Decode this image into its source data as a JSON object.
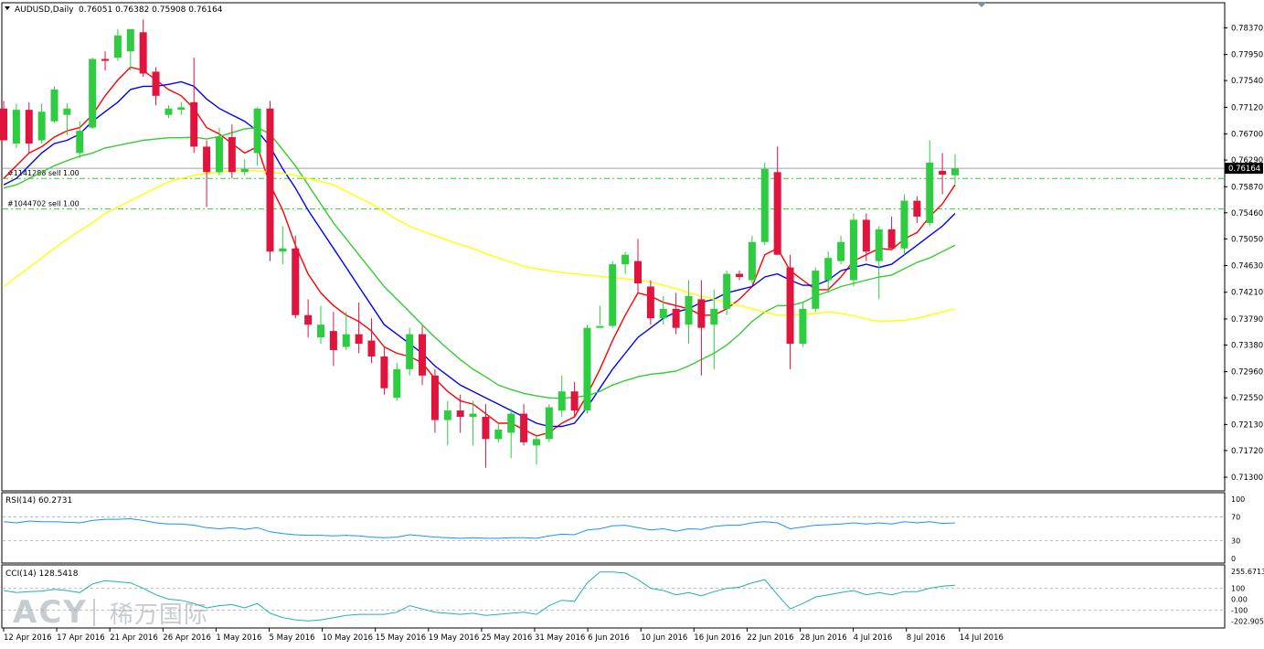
{
  "header": {
    "symbol": "AUDUSD,Daily",
    "ohlc": "0.76051 0.76382 0.75908 0.76164"
  },
  "current_price_label": "0.76164",
  "orders": [
    {
      "label": "#1141288 sell 1.00",
      "price": 0.76
    },
    {
      "label": "#1044702 sell 1.00",
      "price": 0.7552
    }
  ],
  "rsi": {
    "title": "RSI(14) 60.2731",
    "levels": [
      "100",
      "70",
      "30",
      "0"
    ]
  },
  "cci": {
    "title": "CCI(14) 128.5418",
    "levels": [
      "255.6713",
      "100",
      "0.00",
      "-100",
      "-202.905"
    ]
  },
  "watermark": {
    "latin": "ACY",
    "cn": "稀万国际"
  },
  "colors": {
    "bull": "#2ecc40",
    "bear": "#e0143c",
    "ma_red": "#ff0000",
    "ma_blue": "#0000ff",
    "ma_green": "#33cc33",
    "ma_yellow": "#ffff00",
    "osc": "#1e90ff",
    "cci": "#20b2aa"
  },
  "chart_data": [
    {
      "type": "candlestick",
      "title": "AUDUSD,Daily",
      "y_ticks": [
        "0.78370",
        "0.77950",
        "0.77540",
        "0.77120",
        "0.76700",
        "0.76290",
        "0.75870",
        "0.75460",
        "0.75050",
        "0.74630",
        "0.74210",
        "0.73790",
        "0.73380",
        "0.72960",
        "0.72550",
        "0.72130",
        "0.71720",
        "0.71300"
      ],
      "x_labels": [
        "12 Apr 2016",
        "17 Apr 2016",
        "21 Apr 2016",
        "26 Apr 2016",
        "1 May 2016",
        "5 May 2016",
        "10 May 2016",
        "15 May 2016",
        "19 May 2016",
        "25 May 2016",
        "31 May 2016",
        "6 Jun 2016",
        "10 Jun 2016",
        "16 Jun 2016",
        "22 Jun 2016",
        "28 Jun 2016",
        "4 Jul 2016",
        "8 Jul 2016",
        "14 Jul 2016"
      ],
      "ylim": [
        0.711,
        0.7875
      ],
      "candles": [
        {
          "o": 0.771,
          "h": 0.7722,
          "l": 0.766,
          "c": 0.766
        },
        {
          "o": 0.7655,
          "h": 0.7718,
          "l": 0.7648,
          "c": 0.7708
        },
        {
          "o": 0.7708,
          "h": 0.772,
          "l": 0.764,
          "c": 0.7655
        },
        {
          "o": 0.766,
          "h": 0.7718,
          "l": 0.7655,
          "c": 0.7705
        },
        {
          "o": 0.769,
          "h": 0.7745,
          "l": 0.7688,
          "c": 0.774
        },
        {
          "o": 0.77,
          "h": 0.7718,
          "l": 0.7668,
          "c": 0.771
        },
        {
          "o": 0.764,
          "h": 0.769,
          "l": 0.7632,
          "c": 0.7675
        },
        {
          "o": 0.768,
          "h": 0.779,
          "l": 0.7678,
          "c": 0.7788
        },
        {
          "o": 0.7788,
          "h": 0.78,
          "l": 0.777,
          "c": 0.7785
        },
        {
          "o": 0.779,
          "h": 0.7835,
          "l": 0.7785,
          "c": 0.7825
        },
        {
          "o": 0.78,
          "h": 0.7832,
          "l": 0.777,
          "c": 0.7835
        },
        {
          "o": 0.783,
          "h": 0.785,
          "l": 0.776,
          "c": 0.7765
        },
        {
          "o": 0.7768,
          "h": 0.7775,
          "l": 0.7715,
          "c": 0.773
        },
        {
          "o": 0.77,
          "h": 0.7715,
          "l": 0.7695,
          "c": 0.771
        },
        {
          "o": 0.7708,
          "h": 0.772,
          "l": 0.77,
          "c": 0.7712
        },
        {
          "o": 0.772,
          "h": 0.779,
          "l": 0.764,
          "c": 0.765
        },
        {
          "o": 0.765,
          "h": 0.766,
          "l": 0.7555,
          "c": 0.761
        },
        {
          "o": 0.761,
          "h": 0.768,
          "l": 0.7605,
          "c": 0.7665
        },
        {
          "o": 0.7665,
          "h": 0.7685,
          "l": 0.76,
          "c": 0.761
        },
        {
          "o": 0.761,
          "h": 0.763,
          "l": 0.7605,
          "c": 0.7615
        },
        {
          "o": 0.764,
          "h": 0.7712,
          "l": 0.762,
          "c": 0.771
        },
        {
          "o": 0.771,
          "h": 0.7722,
          "l": 0.747,
          "c": 0.7485
        },
        {
          "o": 0.7485,
          "h": 0.7525,
          "l": 0.7465,
          "c": 0.749
        },
        {
          "o": 0.749,
          "h": 0.751,
          "l": 0.738,
          "c": 0.7385
        },
        {
          "o": 0.7385,
          "h": 0.741,
          "l": 0.735,
          "c": 0.737
        },
        {
          "o": 0.735,
          "h": 0.74,
          "l": 0.734,
          "c": 0.737
        },
        {
          "o": 0.736,
          "h": 0.739,
          "l": 0.7305,
          "c": 0.733
        },
        {
          "o": 0.7335,
          "h": 0.739,
          "l": 0.733,
          "c": 0.7355
        },
        {
          "o": 0.7355,
          "h": 0.7405,
          "l": 0.7325,
          "c": 0.734
        },
        {
          "o": 0.7345,
          "h": 0.738,
          "l": 0.731,
          "c": 0.732
        },
        {
          "o": 0.732,
          "h": 0.7335,
          "l": 0.726,
          "c": 0.727
        },
        {
          "o": 0.7255,
          "h": 0.731,
          "l": 0.725,
          "c": 0.73
        },
        {
          "o": 0.73,
          "h": 0.7365,
          "l": 0.729,
          "c": 0.7355
        },
        {
          "o": 0.7355,
          "h": 0.7368,
          "l": 0.7275,
          "c": 0.729
        },
        {
          "o": 0.729,
          "h": 0.73,
          "l": 0.72,
          "c": 0.722
        },
        {
          "o": 0.722,
          "h": 0.725,
          "l": 0.718,
          "c": 0.7235
        },
        {
          "o": 0.7235,
          "h": 0.726,
          "l": 0.72,
          "c": 0.7225
        },
        {
          "o": 0.7225,
          "h": 0.725,
          "l": 0.718,
          "c": 0.723
        },
        {
          "o": 0.7225,
          "h": 0.7245,
          "l": 0.7145,
          "c": 0.719
        },
        {
          "o": 0.719,
          "h": 0.7215,
          "l": 0.7185,
          "c": 0.7205
        },
        {
          "o": 0.72,
          "h": 0.7238,
          "l": 0.716,
          "c": 0.723
        },
        {
          "o": 0.723,
          "h": 0.7245,
          "l": 0.718,
          "c": 0.7185
        },
        {
          "o": 0.718,
          "h": 0.7195,
          "l": 0.715,
          "c": 0.719
        },
        {
          "o": 0.719,
          "h": 0.7245,
          "l": 0.7185,
          "c": 0.724
        },
        {
          "o": 0.7235,
          "h": 0.729,
          "l": 0.7225,
          "c": 0.7265
        },
        {
          "o": 0.7265,
          "h": 0.728,
          "l": 0.7225,
          "c": 0.7235
        },
        {
          "o": 0.7235,
          "h": 0.737,
          "l": 0.723,
          "c": 0.7365
        },
        {
          "o": 0.7365,
          "h": 0.74,
          "l": 0.737,
          "c": 0.7368
        },
        {
          "o": 0.7368,
          "h": 0.747,
          "l": 0.7365,
          "c": 0.7465
        },
        {
          "o": 0.7465,
          "h": 0.7485,
          "l": 0.745,
          "c": 0.748
        },
        {
          "o": 0.747,
          "h": 0.7505,
          "l": 0.742,
          "c": 0.7435
        },
        {
          "o": 0.743,
          "h": 0.744,
          "l": 0.737,
          "c": 0.738
        },
        {
          "o": 0.738,
          "h": 0.7415,
          "l": 0.737,
          "c": 0.7395
        },
        {
          "o": 0.7395,
          "h": 0.742,
          "l": 0.7355,
          "c": 0.7365
        },
        {
          "o": 0.737,
          "h": 0.744,
          "l": 0.734,
          "c": 0.7415
        },
        {
          "o": 0.741,
          "h": 0.744,
          "l": 0.729,
          "c": 0.7365
        },
        {
          "o": 0.737,
          "h": 0.7425,
          "l": 0.73,
          "c": 0.7395
        },
        {
          "o": 0.7395,
          "h": 0.7455,
          "l": 0.7385,
          "c": 0.745
        },
        {
          "o": 0.745,
          "h": 0.7455,
          "l": 0.744,
          "c": 0.7445
        },
        {
          "o": 0.744,
          "h": 0.751,
          "l": 0.7435,
          "c": 0.75
        },
        {
          "o": 0.75,
          "h": 0.7625,
          "l": 0.7495,
          "c": 0.7615
        },
        {
          "o": 0.761,
          "h": 0.765,
          "l": 0.748,
          "c": 0.748
        },
        {
          "o": 0.746,
          "h": 0.748,
          "l": 0.73,
          "c": 0.734
        },
        {
          "o": 0.734,
          "h": 0.7405,
          "l": 0.7335,
          "c": 0.7395
        },
        {
          "o": 0.7395,
          "h": 0.746,
          "l": 0.739,
          "c": 0.7455
        },
        {
          "o": 0.744,
          "h": 0.7485,
          "l": 0.742,
          "c": 0.7475
        },
        {
          "o": 0.747,
          "h": 0.751,
          "l": 0.7465,
          "c": 0.75
        },
        {
          "o": 0.744,
          "h": 0.7545,
          "l": 0.743,
          "c": 0.7535
        },
        {
          "o": 0.7535,
          "h": 0.7545,
          "l": 0.747,
          "c": 0.7485
        },
        {
          "o": 0.747,
          "h": 0.7525,
          "l": 0.741,
          "c": 0.752
        },
        {
          "o": 0.752,
          "h": 0.754,
          "l": 0.749,
          "c": 0.749
        },
        {
          "o": 0.749,
          "h": 0.7575,
          "l": 0.748,
          "c": 0.7565
        },
        {
          "o": 0.7565,
          "h": 0.7572,
          "l": 0.753,
          "c": 0.754
        },
        {
          "o": 0.753,
          "h": 0.766,
          "l": 0.7525,
          "c": 0.7625
        },
        {
          "o": 0.7612,
          "h": 0.764,
          "l": 0.7575,
          "c": 0.7606
        },
        {
          "o": 0.7605,
          "h": 0.7638,
          "l": 0.7591,
          "c": 0.7616
        }
      ],
      "series": [
        {
          "name": "",
          "color": "#ff0000",
          "values": [
            0.76,
            0.762,
            0.764,
            0.765,
            0.7665,
            0.7675,
            0.768,
            0.77,
            0.773,
            0.7755,
            0.7775,
            0.777,
            0.7755,
            0.774,
            0.773,
            0.771,
            0.768,
            0.767,
            0.7655,
            0.764,
            0.765,
            0.759,
            0.755,
            0.7495,
            0.745,
            0.742,
            0.74,
            0.7385,
            0.7375,
            0.736,
            0.7335,
            0.7325,
            0.732,
            0.731,
            0.7285,
            0.7265,
            0.725,
            0.7245,
            0.723,
            0.7215,
            0.7215,
            0.7205,
            0.7195,
            0.72,
            0.7215,
            0.7225,
            0.726,
            0.73,
            0.7345,
            0.7385,
            0.742,
            0.7415,
            0.7405,
            0.74,
            0.7395,
            0.7385,
            0.7385,
            0.7395,
            0.741,
            0.743,
            0.748,
            0.749,
            0.7455,
            0.744,
            0.7425,
            0.7425,
            0.7445,
            0.747,
            0.748,
            0.749,
            0.7488,
            0.7505,
            0.7515,
            0.754,
            0.756,
            0.759
          ]
        },
        {
          "name": "",
          "color": "#0000ff",
          "values": [
            0.759,
            0.76,
            0.762,
            0.764,
            0.7655,
            0.766,
            0.767,
            0.769,
            0.7705,
            0.772,
            0.774,
            0.7745,
            0.7745,
            0.7748,
            0.7752,
            0.7745,
            0.7725,
            0.771,
            0.77,
            0.769,
            0.7675,
            0.765,
            0.7615,
            0.7585,
            0.755,
            0.752,
            0.749,
            0.746,
            0.743,
            0.74,
            0.737,
            0.7355,
            0.734,
            0.7325,
            0.7305,
            0.729,
            0.7275,
            0.7265,
            0.7255,
            0.7245,
            0.7235,
            0.7225,
            0.7215,
            0.721,
            0.721,
            0.7215,
            0.724,
            0.727,
            0.73,
            0.7325,
            0.735,
            0.7365,
            0.738,
            0.739,
            0.7395,
            0.7405,
            0.741,
            0.742,
            0.7425,
            0.743,
            0.7445,
            0.745,
            0.744,
            0.7432,
            0.7432,
            0.744,
            0.7455,
            0.746,
            0.7465,
            0.746,
            0.7465,
            0.748,
            0.7495,
            0.751,
            0.7525,
            0.7545
          ]
        },
        {
          "name": "",
          "color": "#33cc33",
          "values": [
            0.7585,
            0.759,
            0.76,
            0.761,
            0.762,
            0.7628,
            0.7635,
            0.764,
            0.7648,
            0.7652,
            0.7656,
            0.766,
            0.7662,
            0.7664,
            0.7664,
            0.7665,
            0.7662,
            0.7666,
            0.7672,
            0.7678,
            0.768,
            0.767,
            0.7645,
            0.762,
            0.759,
            0.756,
            0.753,
            0.7505,
            0.748,
            0.7455,
            0.743,
            0.741,
            0.739,
            0.737,
            0.735,
            0.7332,
            0.7315,
            0.73,
            0.7288,
            0.7275,
            0.7268,
            0.7262,
            0.7258,
            0.7255,
            0.7254,
            0.7256,
            0.7258,
            0.7265,
            0.7275,
            0.7282,
            0.7288,
            0.7292,
            0.7294,
            0.7297,
            0.7305,
            0.7315,
            0.7325,
            0.7338,
            0.7355,
            0.7375,
            0.739,
            0.74,
            0.74,
            0.7405,
            0.7415,
            0.7422,
            0.743,
            0.7435,
            0.744,
            0.7445,
            0.7448,
            0.7458,
            0.7468,
            0.7475,
            0.7485,
            0.7495
          ]
        },
        {
          "name": "",
          "color": "#ffff00",
          "values": [
            0.743,
            0.7445,
            0.746,
            0.7475,
            0.749,
            0.7505,
            0.7518,
            0.753,
            0.7545,
            0.7555,
            0.7565,
            0.7575,
            0.7585,
            0.7595,
            0.76,
            0.7605,
            0.7608,
            0.761,
            0.7612,
            0.7613,
            0.7612,
            0.761,
            0.7608,
            0.7605,
            0.76,
            0.7595,
            0.759,
            0.758,
            0.757,
            0.756,
            0.7548,
            0.7535,
            0.7525,
            0.7517,
            0.751,
            0.7503,
            0.7496,
            0.749,
            0.7482,
            0.7475,
            0.7468,
            0.7462,
            0.7458,
            0.7455,
            0.7452,
            0.745,
            0.7448,
            0.7446,
            0.7444,
            0.7442,
            0.744,
            0.7437,
            0.7432,
            0.7427,
            0.742,
            0.7415,
            0.741,
            0.7405,
            0.74,
            0.7395,
            0.739,
            0.7385,
            0.7385,
            0.7386,
            0.7388,
            0.739,
            0.7388,
            0.7384,
            0.7379,
            0.7375,
            0.7376,
            0.7377,
            0.738,
            0.7385,
            0.739,
            0.7395
          ]
        }
      ]
    },
    {
      "type": "line",
      "title": "RSI(14) 60.2731",
      "ylim": [
        0,
        100
      ],
      "series": [
        {
          "name": "",
          "color": "#1e90ff",
          "values": [
            62,
            60,
            63,
            62,
            62,
            61,
            60,
            64,
            66,
            66,
            67,
            64,
            60,
            58,
            58,
            56,
            52,
            50,
            52,
            49,
            52,
            45,
            42,
            40,
            39,
            39,
            38,
            39,
            38,
            36,
            35,
            36,
            40,
            38,
            36,
            35,
            34,
            35,
            34,
            34,
            35,
            35,
            34,
            38,
            41,
            40,
            48,
            50,
            55,
            56,
            52,
            48,
            50,
            46,
            50,
            49,
            54,
            56,
            56,
            60,
            62,
            60,
            50,
            53,
            56,
            57,
            58,
            60,
            58,
            60,
            58,
            62,
            60,
            62,
            59,
            60
          ]
        }
      ]
    },
    {
      "type": "line",
      "title": "CCI(14) 128.5418",
      "ylim": [
        -240,
        290
      ],
      "series": [
        {
          "name": "",
          "color": "#20b2aa",
          "values": [
            80,
            60,
            70,
            75,
            90,
            80,
            60,
            140,
            170,
            160,
            150,
            100,
            40,
            0,
            -10,
            -40,
            -80,
            -60,
            -50,
            -80,
            -40,
            -130,
            -170,
            -190,
            -200,
            -190,
            -170,
            -150,
            -140,
            -140,
            -140,
            -120,
            -60,
            -90,
            -120,
            -130,
            -140,
            -130,
            -150,
            -140,
            -130,
            -120,
            -140,
            -60,
            -10,
            -20,
            150,
            250,
            250,
            240,
            180,
            100,
            80,
            40,
            60,
            30,
            70,
            100,
            110,
            150,
            180,
            40,
            -90,
            -40,
            20,
            40,
            60,
            80,
            40,
            60,
            40,
            70,
            70,
            100,
            120,
            128
          ]
        }
      ]
    }
  ]
}
